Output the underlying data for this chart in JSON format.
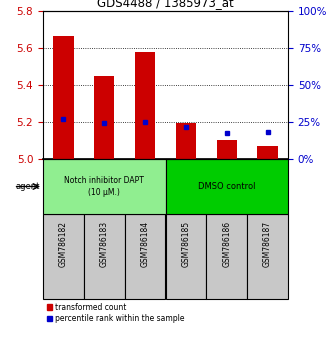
{
  "title": "GDS4488 / 1385973_at",
  "samples": [
    "GSM786182",
    "GSM786183",
    "GSM786184",
    "GSM786185",
    "GSM786186",
    "GSM786187"
  ],
  "red_values": [
    5.665,
    5.45,
    5.575,
    5.195,
    5.1,
    5.07
  ],
  "blue_values": [
    5.215,
    5.195,
    5.2,
    5.175,
    5.14,
    5.145
  ],
  "ymin": 5.0,
  "ymax": 5.8,
  "yticks": [
    5.0,
    5.2,
    5.4,
    5.6,
    5.8
  ],
  "right_yticks": [
    0,
    25,
    50,
    75,
    100
  ],
  "right_ylabels": [
    "0%",
    "25%",
    "50%",
    "75%",
    "100%"
  ],
  "group1_label": "Notch inhibitor DAPT\n(10 μM.)",
  "group2_label": "DMSO control",
  "group1_color": "#90EE90",
  "group2_color": "#00CC00",
  "agent_label": "agent",
  "legend_red": "transformed count",
  "legend_blue": "percentile rank within the sample",
  "red_color": "#CC0000",
  "blue_color": "#0000CC",
  "bar_width": 0.5,
  "tick_bg_color": "#C8C8C8"
}
